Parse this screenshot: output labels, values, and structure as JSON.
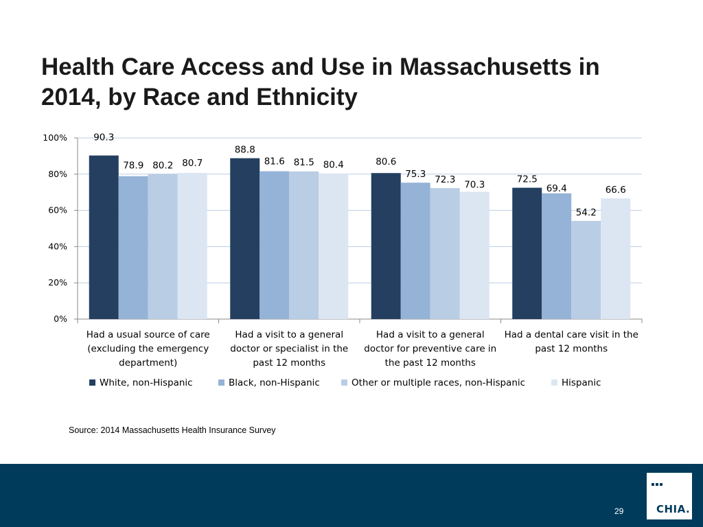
{
  "slide": {
    "title": "Health Care Access and Use in Massachusetts in 2014, by Race and Ethnicity",
    "source": "Source:  2014 Massachusetts Health Insurance Survey",
    "page_number": "29",
    "logo_text": "CHIA."
  },
  "colors": {
    "white_non_hispanic": "#243f60",
    "black_non_hispanic": "#95b3d7",
    "other_non_hispanic": "#b9cde5",
    "hispanic": "#dce6f2",
    "footer": "#003b5c"
  },
  "chart_data": {
    "type": "bar",
    "title": "",
    "xlabel": "",
    "ylabel": "",
    "ylim": [
      0,
      100
    ],
    "yticks": [
      0,
      20,
      40,
      60,
      80,
      100
    ],
    "ytick_labels": [
      "0%",
      "20%",
      "40%",
      "60%",
      "80%",
      "100%"
    ],
    "grid": true,
    "legend_position": "bottom",
    "categories": [
      [
        "Had a usual source of care",
        "(excluding the emergency",
        "department)"
      ],
      [
        "Had a visit to a general",
        "doctor or specialist in the",
        "past 12 months"
      ],
      [
        "Had a visit to a general",
        "doctor for preventive care in",
        "the past 12 months"
      ],
      [
        "Had a dental care visit in the",
        "past 12 months"
      ]
    ],
    "series": [
      {
        "name": "White, non-Hispanic",
        "color": "#243f60",
        "values": [
          90.3,
          88.8,
          80.6,
          72.5
        ],
        "labels": [
          "90.3",
          "88.8",
          "80.6",
          "72.5"
        ]
      },
      {
        "name": "Black, non-Hispanic",
        "color": "#95b3d7",
        "values": [
          78.9,
          81.6,
          75.3,
          69.4
        ],
        "labels": [
          "78.9",
          "81.6",
          "75.3",
          "69.4"
        ]
      },
      {
        "name": "Other or multiple races, non-Hispanic",
        "color": "#b9cde5",
        "values": [
          80.2,
          81.5,
          72.3,
          54.2
        ],
        "labels": [
          "80.2",
          "81.5",
          "72.3",
          "54.2"
        ]
      },
      {
        "name": "Hispanic",
        "color": "#dce6f2",
        "values": [
          80.7,
          80.4,
          70.3,
          66.6
        ],
        "labels": [
          "80.7",
          "80.4",
          "70.3",
          "66.6"
        ]
      }
    ]
  }
}
